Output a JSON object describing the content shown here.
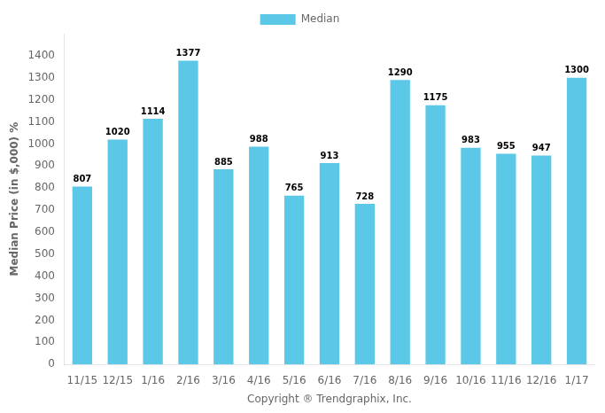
{
  "chart_data": {
    "type": "bar",
    "categories": [
      "11/15",
      "12/15",
      "1/16",
      "2/16",
      "3/16",
      "4/16",
      "5/16",
      "6/16",
      "7/16",
      "8/16",
      "9/16",
      "10/16",
      "11/16",
      "12/16",
      "1/17"
    ],
    "series": [
      {
        "name": "Median",
        "color": "#5BC8E8",
        "values": [
          807,
          1020,
          1114,
          1377,
          885,
          988,
          765,
          913,
          728,
          1290,
          1175,
          983,
          955,
          947,
          1300
        ]
      }
    ],
    "xlabel": "Copyright ® Trendgraphix, Inc.",
    "ylabel": "Median Price (in $,000) %",
    "ylim": [
      0,
      1500
    ],
    "yticks": [
      0,
      100,
      200,
      300,
      400,
      500,
      600,
      700,
      800,
      900,
      1000,
      1100,
      1200,
      1300,
      1400
    ],
    "grid": false,
    "legend": "top",
    "data_labels": true
  }
}
